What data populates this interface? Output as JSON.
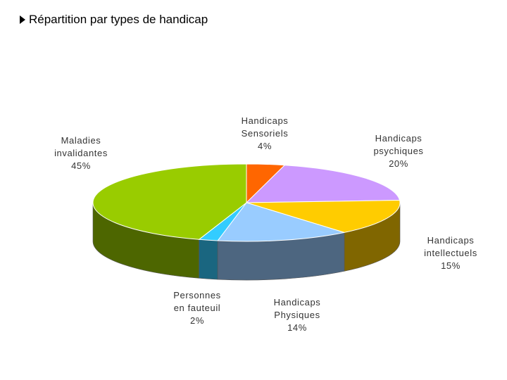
{
  "title": "Répartition par types de handicap",
  "chart_data": {
    "type": "pie",
    "title": "Répartition par types de handicap",
    "slices": [
      {
        "label": [
          "Handicaps",
          "Sensoriels",
          "4%"
        ],
        "value": 4,
        "color": "#ff6600"
      },
      {
        "label": [
          "Handicaps",
          "psychiques",
          "20%"
        ],
        "value": 20,
        "color": "#cc99ff"
      },
      {
        "label": [
          "Handicaps",
          "intellectuels",
          "15%"
        ],
        "value": 15,
        "color": "#ffcc00"
      },
      {
        "label": [
          "Handicaps",
          "Physiques",
          "14%"
        ],
        "value": 14,
        "color": "#99ccff"
      },
      {
        "label": [
          "Personnes",
          "en fauteuil",
          "2%"
        ],
        "value": 2,
        "color": "#33ccff"
      },
      {
        "label": [
          "Maladies",
          "invalidantes",
          "45%"
        ],
        "value": 45,
        "color": "#99cc00"
      }
    ]
  }
}
